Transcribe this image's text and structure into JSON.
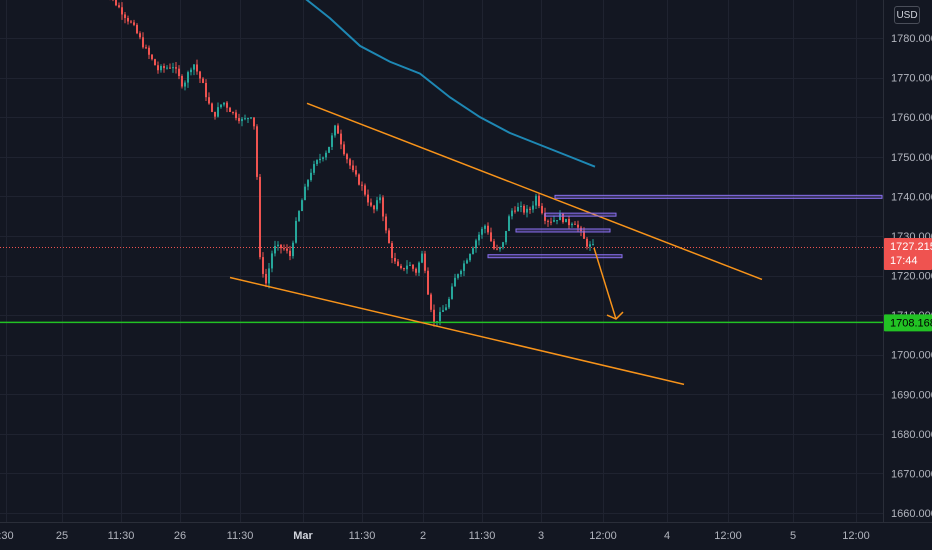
{
  "currency": "USD",
  "colors": {
    "background": "#131722",
    "grid": "#1f2330",
    "up": "#26a69a",
    "down": "#ef5350",
    "ma": "#1e88b4",
    "channel": "#f7931a",
    "box": "#8a6ff0",
    "support": "#22c224",
    "current_price": "#ef5350"
  },
  "chart_data": {
    "type": "candlestick",
    "y_axis": {
      "range": [
        1658,
        1791
      ],
      "ticks": [
        "1780.000",
        "1770.000",
        "1760.000",
        "1750.000",
        "1740.000",
        "1730.000",
        "1720.000",
        "1710.000",
        "1700.000",
        "1690.000",
        "1680.000",
        "1670.000",
        "1660.000"
      ]
    },
    "x_axis": {
      "ticks": [
        {
          "label": ":30",
          "bold": false
        },
        {
          "label": "25",
          "bold": false
        },
        {
          "label": "11:30",
          "bold": false
        },
        {
          "label": "26",
          "bold": false
        },
        {
          "label": "11:30",
          "bold": false
        },
        {
          "label": "Mar",
          "bold": true
        },
        {
          "label": "11:30",
          "bold": false
        },
        {
          "label": "2",
          "bold": false
        },
        {
          "label": "11:30",
          "bold": false
        },
        {
          "label": "3",
          "bold": false
        },
        {
          "label": "12:00",
          "bold": false
        },
        {
          "label": "4",
          "bold": false
        },
        {
          "label": "12:00",
          "bold": false
        },
        {
          "label": "5",
          "bold": false
        },
        {
          "label": "12:00",
          "bold": false
        }
      ]
    },
    "price_path": [
      [
        100,
        1795
      ],
      [
        120,
        1788
      ],
      [
        135,
        1783
      ],
      [
        150,
        1776
      ],
      [
        160,
        1772
      ],
      [
        175,
        1773
      ],
      [
        185,
        1768
      ],
      [
        195,
        1774
      ],
      [
        205,
        1768
      ],
      [
        215,
        1760
      ],
      [
        225,
        1764
      ],
      [
        235,
        1761
      ],
      [
        245,
        1759
      ],
      [
        255,
        1761
      ],
      [
        258,
        1752
      ],
      [
        262,
        1724
      ],
      [
        268,
        1718
      ],
      [
        275,
        1727
      ],
      [
        285,
        1727
      ],
      [
        292,
        1725
      ],
      [
        298,
        1733
      ],
      [
        305,
        1740
      ],
      [
        312,
        1746
      ],
      [
        320,
        1749
      ],
      [
        330,
        1752
      ],
      [
        338,
        1758
      ],
      [
        345,
        1752
      ],
      [
        355,
        1746
      ],
      [
        365,
        1742
      ],
      [
        375,
        1736
      ],
      [
        382,
        1740
      ],
      [
        388,
        1731
      ],
      [
        395,
        1724
      ],
      [
        402,
        1721
      ],
      [
        410,
        1723
      ],
      [
        418,
        1721
      ],
      [
        425,
        1726
      ],
      [
        430,
        1716
      ],
      [
        436,
        1708
      ],
      [
        442,
        1710
      ],
      [
        450,
        1713
      ],
      [
        458,
        1720
      ],
      [
        466,
        1723
      ],
      [
        474,
        1727
      ],
      [
        480,
        1730
      ],
      [
        488,
        1733
      ],
      [
        495,
        1727
      ],
      [
        500,
        1726
      ],
      [
        505,
        1728
      ],
      [
        510,
        1734
      ],
      [
        515,
        1737
      ],
      [
        522,
        1737
      ],
      [
        528,
        1736
      ],
      [
        533,
        1737
      ],
      [
        538,
        1740
      ],
      [
        543,
        1737
      ],
      [
        548,
        1734
      ],
      [
        555,
        1734
      ],
      [
        562,
        1735
      ],
      [
        570,
        1733
      ],
      [
        576,
        1734
      ],
      [
        582,
        1731
      ],
      [
        588,
        1728
      ],
      [
        594,
        1727.2
      ]
    ],
    "current_price": {
      "label": "1727.215",
      "countdown": "17:44",
      "value": 1727.215
    },
    "support_level": {
      "label": "1708.168",
      "value": 1708.168
    },
    "moving_average": [
      [
        295,
        1792
      ],
      [
        310,
        1789
      ],
      [
        330,
        1785
      ],
      [
        360,
        1778
      ],
      [
        390,
        1774
      ],
      [
        420,
        1771
      ],
      [
        450,
        1765
      ],
      [
        480,
        1760
      ],
      [
        510,
        1756
      ],
      [
        540,
        1753
      ],
      [
        570,
        1750
      ],
      [
        595,
        1747.5
      ]
    ],
    "channel_upper": [
      [
        307,
        1763.5
      ],
      [
        762,
        1719
      ]
    ],
    "channel_lower": [
      [
        230,
        1719.5
      ],
      [
        684,
        1692.5
      ]
    ],
    "boxes": [
      {
        "x": [
          555,
          882
        ],
        "price": 1740
      },
      {
        "x": [
          545,
          616
        ],
        "price": 1735.5
      },
      {
        "x": [
          516,
          610
        ],
        "price": 1731.5
      },
      {
        "x": [
          488,
          622
        ],
        "price": 1725
      }
    ],
    "projection": [
      [
        594,
        1727
      ],
      [
        616,
        1709
      ]
    ]
  }
}
